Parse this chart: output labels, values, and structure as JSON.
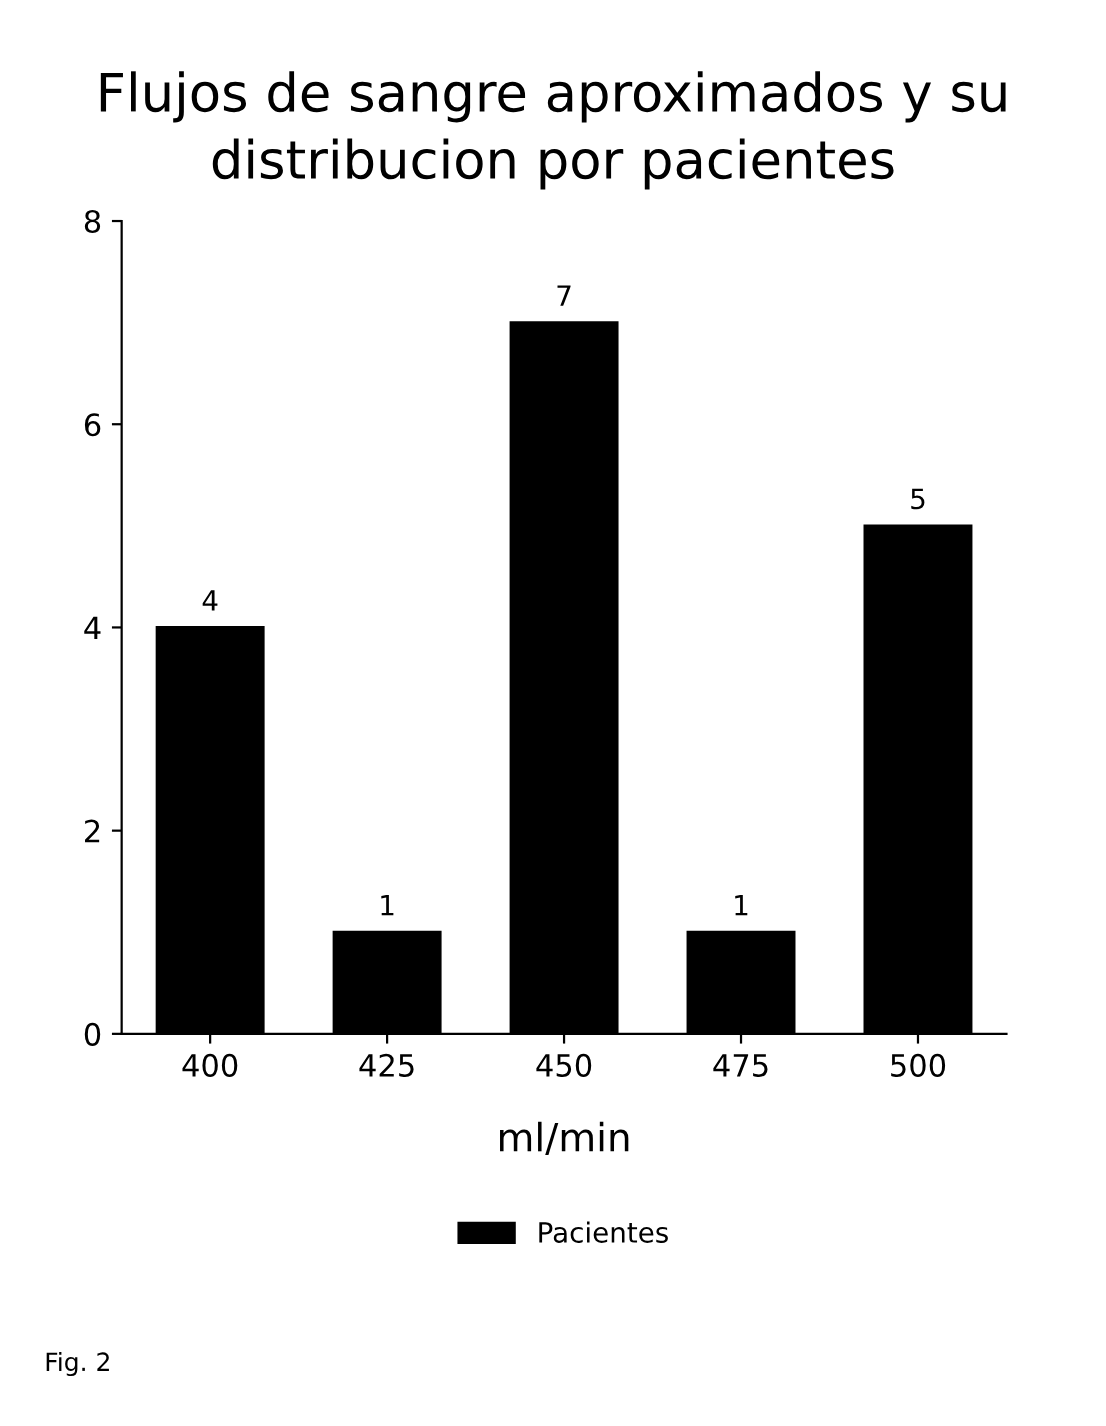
{
  "chart_data": {
    "type": "bar",
    "title": "Flujos de sangre aproximados y su\ndistribucion por pacientes",
    "xlabel": "ml/min",
    "categories": [
      "400",
      "425",
      "450",
      "475",
      "500"
    ],
    "series": [
      {
        "name": "Pacientes",
        "color": "#000000",
        "values": [
          4,
          1,
          7,
          1,
          5
        ]
      }
    ],
    "ylim": [
      0,
      8
    ],
    "yticks": [
      0,
      2,
      4,
      6,
      8
    ],
    "data_labels": true,
    "legend": "bottom",
    "grid": false,
    "annotations": [
      "Fig. 2"
    ]
  }
}
